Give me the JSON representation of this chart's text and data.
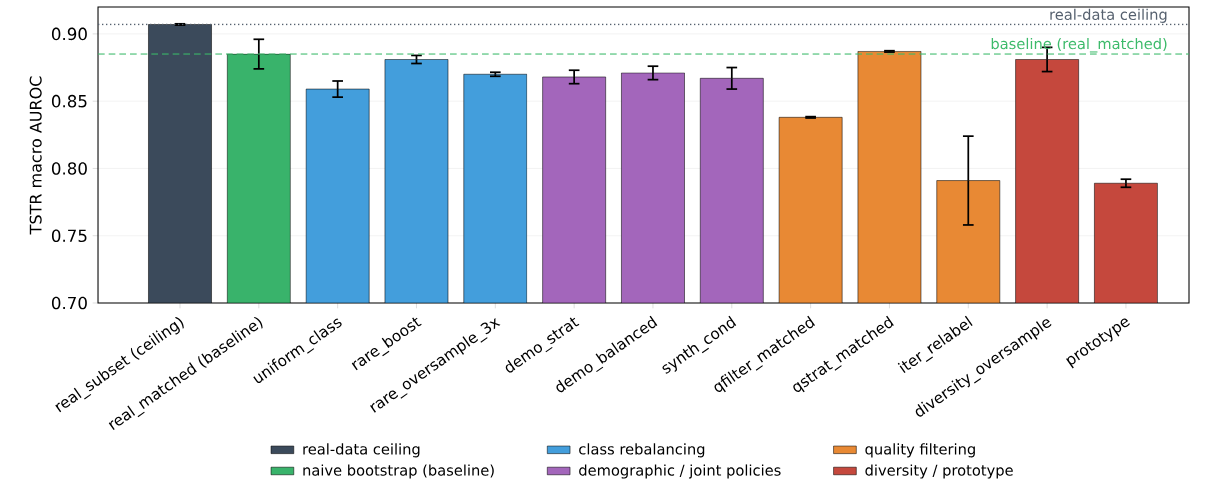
{
  "chart_data": {
    "type": "bar",
    "ylabel": "TSTR macro AUROC",
    "categories": [
      "real_subset (ceiling)",
      "real_matched (baseline)",
      "uniform_class",
      "rare_boost",
      "rare_oversample_3x",
      "demo_strat",
      "demo_balanced",
      "synth_cond",
      "qfilter_matched",
      "qstrat_matched",
      "iter_relabel",
      "diversity_oversample",
      "prototype"
    ],
    "series": [
      {
        "name": "real-data ceiling",
        "color": "#3b4a5b",
        "values": [
          0.907,
          null,
          null,
          null,
          null,
          null,
          null,
          null,
          null,
          null,
          null,
          null,
          null
        ],
        "errors": [
          0.0005,
          null,
          null,
          null,
          null,
          null,
          null,
          null,
          null,
          null,
          null,
          null,
          null
        ]
      },
      {
        "name": "class rebalancing",
        "color": "#439edc",
        "values": [
          null,
          null,
          0.859,
          0.881,
          0.87,
          null,
          null,
          null,
          null,
          null,
          null,
          null,
          null
        ],
        "errors": [
          null,
          null,
          0.006,
          0.003,
          0.0015,
          null,
          null,
          null,
          null,
          null,
          null,
          null,
          null
        ]
      },
      {
        "name": "quality filtering",
        "color": "#e88934",
        "values": [
          null,
          null,
          null,
          null,
          null,
          null,
          null,
          null,
          0.838,
          0.887,
          0.791,
          null,
          null
        ],
        "errors": [
          null,
          null,
          null,
          null,
          null,
          null,
          null,
          null,
          0.0005,
          0.0005,
          0.033,
          null,
          null
        ]
      },
      {
        "name": "naive bootstrap (baseline)",
        "color": "#39b36b",
        "values": [
          null,
          0.885,
          null,
          null,
          null,
          null,
          null,
          null,
          null,
          null,
          null,
          null,
          null
        ],
        "errors": [
          null,
          0.011,
          null,
          null,
          null,
          null,
          null,
          null,
          null,
          null,
          null,
          null,
          null
        ]
      },
      {
        "name": "demographic / joint policies",
        "color": "#a366bb",
        "values": [
          null,
          null,
          null,
          null,
          null,
          0.868,
          0.871,
          0.867,
          null,
          null,
          null,
          null,
          null
        ],
        "errors": [
          null,
          null,
          null,
          null,
          null,
          0.005,
          0.005,
          0.008,
          null,
          null,
          null,
          null,
          null
        ]
      },
      {
        "name": "diversity / prototype",
        "color": "#c5483d",
        "values": [
          null,
          null,
          null,
          null,
          null,
          null,
          null,
          null,
          null,
          null,
          null,
          0.881,
          0.789
        ],
        "errors": [
          null,
          null,
          null,
          null,
          null,
          null,
          null,
          null,
          null,
          null,
          null,
          0.009,
          0.003
        ]
      }
    ],
    "ylim": [
      0.7,
      0.92
    ],
    "yticks": [
      {
        "value": 0.7,
        "label": "0.70"
      },
      {
        "value": 0.75,
        "label": "0.75"
      },
      {
        "value": 0.8,
        "label": "0.80"
      },
      {
        "value": 0.85,
        "label": "0.85"
      },
      {
        "value": 0.9,
        "label": "0.90"
      }
    ],
    "ref_lines": [
      {
        "axis": "y",
        "value": 0.907,
        "label": "real-data ceiling",
        "color": "#55606e",
        "line_style": "dotted"
      },
      {
        "axis": "y",
        "value": 0.885,
        "label": "baseline (real_matched)",
        "color": "#3cba6a",
        "line_style": "dashed"
      }
    ],
    "grid": "y",
    "legend": "bottom"
  }
}
